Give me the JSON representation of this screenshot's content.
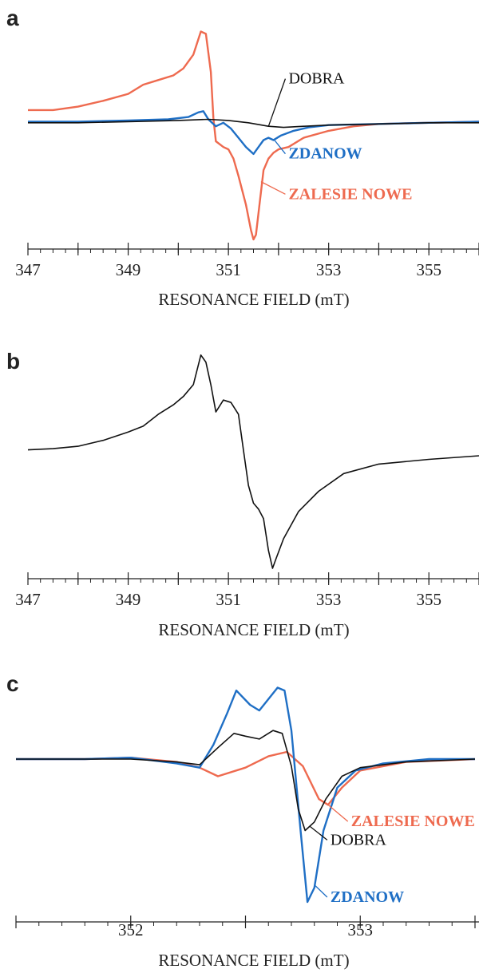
{
  "colors": {
    "black": "#111111",
    "blue": "#1f6fc5",
    "orange": "#ee6a4f"
  },
  "chart_data": [
    {
      "panel": "a",
      "type": "line",
      "xlabel": "RESONANCE FIELD (mT)",
      "xlim": [
        347,
        356
      ],
      "xticks": [
        "347",
        "349",
        "351",
        "353",
        "355"
      ],
      "ylim": [
        -1,
        0.9
      ],
      "series": [
        {
          "name": "ZALESIE NOWE",
          "color": "orange",
          "points": [
            [
              347,
              0.12
            ],
            [
              347.5,
              0.12
            ],
            [
              348,
              0.15
            ],
            [
              348.5,
              0.2
            ],
            [
              349,
              0.26
            ],
            [
              349.3,
              0.34
            ],
            [
              349.6,
              0.38
            ],
            [
              349.9,
              0.42
            ],
            [
              350.1,
              0.48
            ],
            [
              350.3,
              0.6
            ],
            [
              350.45,
              0.8
            ],
            [
              350.55,
              0.78
            ],
            [
              350.65,
              0.45
            ],
            [
              350.7,
              0.05
            ],
            [
              350.75,
              -0.15
            ],
            [
              350.9,
              -0.2
            ],
            [
              351.0,
              -0.22
            ],
            [
              351.1,
              -0.3
            ],
            [
              351.2,
              -0.45
            ],
            [
              351.35,
              -0.7
            ],
            [
              351.45,
              -0.92
            ],
            [
              351.5,
              -1.0
            ],
            [
              351.55,
              -0.96
            ],
            [
              351.62,
              -0.7
            ],
            [
              351.7,
              -0.4
            ],
            [
              351.8,
              -0.3
            ],
            [
              351.9,
              -0.25
            ],
            [
              352.0,
              -0.22
            ],
            [
              352.2,
              -0.2
            ],
            [
              352.5,
              -0.12
            ],
            [
              353,
              -0.06
            ],
            [
              353.5,
              -0.02
            ],
            [
              354,
              0.0
            ],
            [
              355,
              0.01
            ],
            [
              356,
              0.02
            ]
          ]
        },
        {
          "name": "ZDANOW",
          "color": "blue",
          "points": [
            [
              347,
              0.02
            ],
            [
              348,
              0.02
            ],
            [
              349,
              0.03
            ],
            [
              349.8,
              0.04
            ],
            [
              350.2,
              0.06
            ],
            [
              350.4,
              0.1
            ],
            [
              350.5,
              0.11
            ],
            [
              350.6,
              0.04
            ],
            [
              350.75,
              -0.02
            ],
            [
              350.9,
              0.01
            ],
            [
              351.05,
              -0.04
            ],
            [
              351.2,
              -0.12
            ],
            [
              351.35,
              -0.2
            ],
            [
              351.5,
              -0.26
            ],
            [
              351.6,
              -0.2
            ],
            [
              351.7,
              -0.14
            ],
            [
              351.8,
              -0.12
            ],
            [
              351.9,
              -0.14
            ],
            [
              352.05,
              -0.1
            ],
            [
              352.3,
              -0.06
            ],
            [
              352.6,
              -0.03
            ],
            [
              353,
              -0.01
            ],
            [
              354,
              0.0
            ],
            [
              355,
              0.01
            ],
            [
              356,
              0.02
            ]
          ]
        },
        {
          "name": "DOBRA",
          "color": "black",
          "points": [
            [
              347,
              0.01
            ],
            [
              348,
              0.01
            ],
            [
              349,
              0.02
            ],
            [
              350,
              0.03
            ],
            [
              350.6,
              0.04
            ],
            [
              351,
              0.03
            ],
            [
              351.4,
              0.01
            ],
            [
              351.8,
              -0.02
            ],
            [
              352.1,
              -0.03
            ],
            [
              352.5,
              -0.02
            ],
            [
              353,
              -0.01
            ],
            [
              354,
              0.0
            ],
            [
              355,
              0.01
            ],
            [
              356,
              0.01
            ]
          ]
        }
      ],
      "labels": [
        {
          "text": "DOBRA",
          "color": "black",
          "bold": false,
          "at": [
            352.2,
            0.35
          ],
          "pointer_to": [
            351.8,
            -0.02
          ]
        },
        {
          "text": "ZDANOW",
          "color": "blue",
          "bold": true,
          "at": [
            352.2,
            -0.3
          ],
          "pointer_to": [
            351.9,
            -0.13
          ]
        },
        {
          "text": "ZALESIE NOWE",
          "color": "orange",
          "bold": true,
          "at": [
            352.2,
            -0.65
          ],
          "pointer_to": [
            351.65,
            -0.5
          ]
        }
      ]
    },
    {
      "panel": "b",
      "type": "line",
      "xlabel": "RESONANCE FIELD (mT)",
      "xlim": [
        347,
        356
      ],
      "xticks": [
        "347",
        "349",
        "351",
        "353",
        "355"
      ],
      "ylim": [
        -1,
        0.9
      ],
      "series": [
        {
          "color": "black",
          "points": [
            [
              347,
              0.0
            ],
            [
              347.5,
              0.01
            ],
            [
              348,
              0.03
            ],
            [
              348.5,
              0.08
            ],
            [
              349,
              0.15
            ],
            [
              349.3,
              0.2
            ],
            [
              349.6,
              0.3
            ],
            [
              349.9,
              0.38
            ],
            [
              350.1,
              0.45
            ],
            [
              350.3,
              0.55
            ],
            [
              350.45,
              0.8
            ],
            [
              350.55,
              0.74
            ],
            [
              350.65,
              0.55
            ],
            [
              350.75,
              0.32
            ],
            [
              350.9,
              0.42
            ],
            [
              351.05,
              0.4
            ],
            [
              351.2,
              0.3
            ],
            [
              351.3,
              0.0
            ],
            [
              351.4,
              -0.3
            ],
            [
              351.5,
              -0.45
            ],
            [
              351.6,
              -0.5
            ],
            [
              351.7,
              -0.58
            ],
            [
              351.8,
              -0.85
            ],
            [
              351.88,
              -1.0
            ],
            [
              351.95,
              -0.92
            ],
            [
              352.1,
              -0.75
            ],
            [
              352.4,
              -0.52
            ],
            [
              352.8,
              -0.35
            ],
            [
              353.3,
              -0.2
            ],
            [
              354,
              -0.12
            ],
            [
              355,
              -0.08
            ],
            [
              356,
              -0.05
            ]
          ]
        }
      ]
    },
    {
      "panel": "c",
      "type": "line",
      "xlabel": "RESONANCE FIELD (mT)",
      "xlim": [
        351.5,
        353.5
      ],
      "xticks": [
        "352",
        "353"
      ],
      "ylim": [
        -1,
        0.62
      ],
      "series": [
        {
          "name": "ZALESIE NOWE",
          "color": "orange",
          "points": [
            [
              351.5,
              0.0
            ],
            [
              351.8,
              0.0
            ],
            [
              352.0,
              0.01
            ],
            [
              352.2,
              -0.02
            ],
            [
              352.3,
              -0.06
            ],
            [
              352.38,
              -0.12
            ],
            [
              352.5,
              -0.06
            ],
            [
              352.6,
              0.02
            ],
            [
              352.68,
              0.05
            ],
            [
              352.75,
              -0.05
            ],
            [
              352.82,
              -0.28
            ],
            [
              352.86,
              -0.32
            ],
            [
              352.92,
              -0.2
            ],
            [
              353.0,
              -0.08
            ],
            [
              353.2,
              -0.02
            ],
            [
              353.5,
              0.0
            ]
          ]
        },
        {
          "name": "ZDANOW",
          "color": "blue",
          "points": [
            [
              351.5,
              0.0
            ],
            [
              351.8,
              0.0
            ],
            [
              352.0,
              0.01
            ],
            [
              352.2,
              -0.03
            ],
            [
              352.3,
              -0.06
            ],
            [
              352.36,
              0.1
            ],
            [
              352.42,
              0.32
            ],
            [
              352.46,
              0.48
            ],
            [
              352.52,
              0.38
            ],
            [
              352.56,
              0.34
            ],
            [
              352.6,
              0.42
            ],
            [
              352.64,
              0.5
            ],
            [
              352.67,
              0.48
            ],
            [
              352.7,
              0.2
            ],
            [
              352.74,
              -0.5
            ],
            [
              352.77,
              -1.0
            ],
            [
              352.8,
              -0.9
            ],
            [
              352.84,
              -0.5
            ],
            [
              352.9,
              -0.2
            ],
            [
              352.98,
              -0.08
            ],
            [
              353.1,
              -0.03
            ],
            [
              353.3,
              0.0
            ],
            [
              353.5,
              0.0
            ]
          ]
        },
        {
          "name": "DOBRA",
          "color": "black",
          "points": [
            [
              351.5,
              0.0
            ],
            [
              351.8,
              0.0
            ],
            [
              352.0,
              0.0
            ],
            [
              352.2,
              -0.02
            ],
            [
              352.3,
              -0.04
            ],
            [
              352.38,
              0.08
            ],
            [
              352.45,
              0.18
            ],
            [
              352.5,
              0.16
            ],
            [
              352.56,
              0.14
            ],
            [
              352.62,
              0.2
            ],
            [
              352.66,
              0.18
            ],
            [
              352.7,
              -0.05
            ],
            [
              352.73,
              -0.35
            ],
            [
              352.76,
              -0.5
            ],
            [
              352.8,
              -0.44
            ],
            [
              352.85,
              -0.28
            ],
            [
              352.92,
              -0.12
            ],
            [
              353.0,
              -0.06
            ],
            [
              353.2,
              -0.02
            ],
            [
              353.5,
              0.0
            ]
          ]
        }
      ],
      "labels": [
        {
          "text": "ZALESIE NOWE",
          "color": "orange",
          "bold": true,
          "at": [
            352.96,
            -0.47
          ],
          "pointer_to": [
            352.86,
            -0.32
          ]
        },
        {
          "text": "DOBRA",
          "color": "black",
          "bold": false,
          "at": [
            352.87,
            -0.6
          ],
          "pointer_to": [
            352.78,
            -0.47
          ]
        },
        {
          "text": "ZDANOW",
          "color": "blue",
          "bold": true,
          "at": [
            352.87,
            -1.0
          ],
          "pointer_to": [
            352.8,
            -0.88
          ]
        }
      ]
    }
  ]
}
